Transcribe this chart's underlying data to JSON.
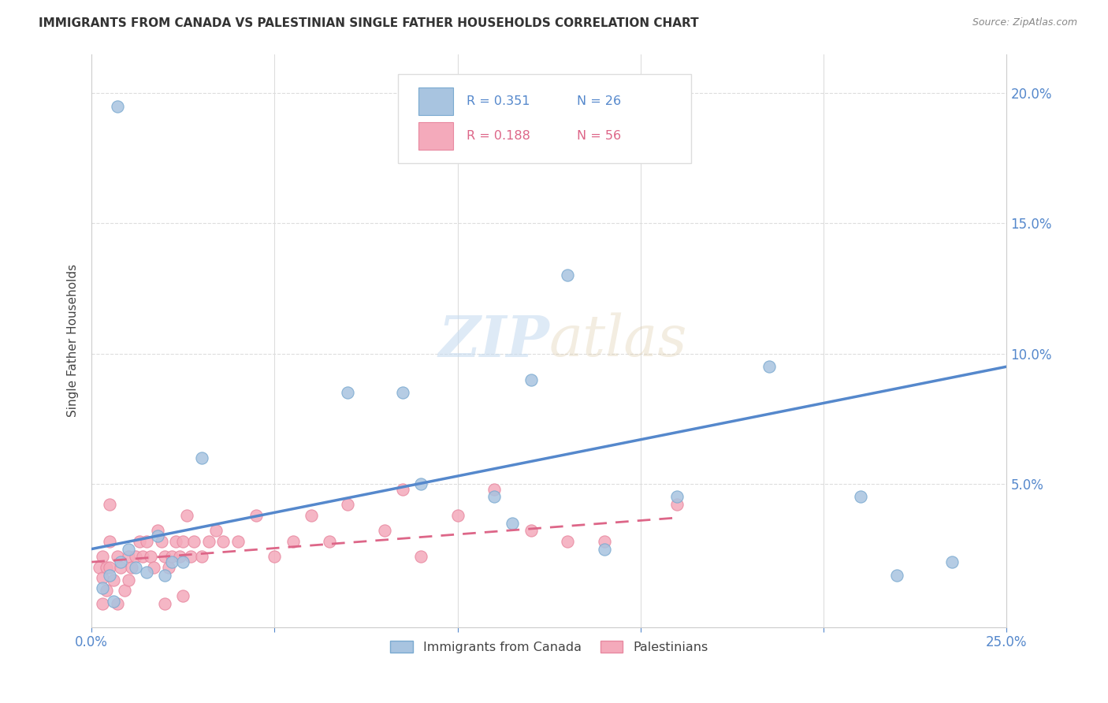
{
  "title": "IMMIGRANTS FROM CANADA VS PALESTINIAN SINGLE FATHER HOUSEHOLDS CORRELATION CHART",
  "source": "Source: ZipAtlas.com",
  "ylabel_label": "Single Father Households",
  "xlim": [
    0.0,
    0.25
  ],
  "ylim": [
    -0.005,
    0.215
  ],
  "blue_color": "#A8C4E0",
  "blue_edge_color": "#7AAAD0",
  "pink_color": "#F4AABB",
  "pink_edge_color": "#E888A0",
  "blue_line_color": "#5588CC",
  "pink_line_color": "#DD6688",
  "watermark_color": "#C8DCF0",
  "blue_scatter_x": [
    0.022,
    0.007,
    0.005,
    0.008,
    0.01,
    0.012,
    0.015,
    0.018,
    0.02,
    0.025,
    0.03,
    0.07,
    0.085,
    0.09,
    0.11,
    0.115,
    0.12,
    0.13,
    0.14,
    0.16,
    0.185,
    0.21,
    0.22,
    0.235,
    0.003,
    0.006
  ],
  "blue_scatter_y": [
    0.02,
    0.195,
    0.015,
    0.02,
    0.025,
    0.018,
    0.016,
    0.03,
    0.015,
    0.02,
    0.06,
    0.085,
    0.085,
    0.05,
    0.045,
    0.035,
    0.09,
    0.13,
    0.025,
    0.045,
    0.095,
    0.045,
    0.015,
    0.02,
    0.01,
    0.005
  ],
  "pink_scatter_x": [
    0.002,
    0.003,
    0.003,
    0.004,
    0.004,
    0.005,
    0.005,
    0.006,
    0.007,
    0.008,
    0.009,
    0.01,
    0.01,
    0.011,
    0.012,
    0.013,
    0.014,
    0.015,
    0.016,
    0.017,
    0.018,
    0.019,
    0.02,
    0.021,
    0.022,
    0.023,
    0.024,
    0.025,
    0.026,
    0.027,
    0.028,
    0.03,
    0.032,
    0.034,
    0.036,
    0.04,
    0.045,
    0.05,
    0.055,
    0.06,
    0.065,
    0.07,
    0.08,
    0.085,
    0.09,
    0.1,
    0.11,
    0.12,
    0.14,
    0.16,
    0.003,
    0.005,
    0.007,
    0.02,
    0.025,
    0.13
  ],
  "pink_scatter_y": [
    0.018,
    0.014,
    0.022,
    0.018,
    0.009,
    0.028,
    0.018,
    0.013,
    0.022,
    0.018,
    0.009,
    0.022,
    0.013,
    0.018,
    0.022,
    0.028,
    0.022,
    0.028,
    0.022,
    0.018,
    0.032,
    0.028,
    0.022,
    0.018,
    0.022,
    0.028,
    0.022,
    0.028,
    0.038,
    0.022,
    0.028,
    0.022,
    0.028,
    0.032,
    0.028,
    0.028,
    0.038,
    0.022,
    0.028,
    0.038,
    0.028,
    0.042,
    0.032,
    0.048,
    0.022,
    0.038,
    0.048,
    0.032,
    0.028,
    0.042,
    0.004,
    0.042,
    0.004,
    0.004,
    0.007,
    0.028
  ],
  "blue_trend_x": [
    0.0,
    0.25
  ],
  "blue_trend_y": [
    0.025,
    0.095
  ],
  "pink_trend_x": [
    0.0,
    0.16
  ],
  "pink_trend_y": [
    0.02,
    0.037
  ],
  "grid_color": "#DDDDDD",
  "background_color": "#FFFFFF",
  "legend_r1": "R = 0.351",
  "legend_n1": "N = 26",
  "legend_r2": "R = 0.188",
  "legend_n2": "N = 56",
  "legend_color_blue": "#5588CC",
  "legend_color_pink": "#DD6688",
  "ytick_vals": [
    0.0,
    0.05,
    0.1,
    0.15,
    0.2
  ],
  "ytick_labels": [
    "",
    "5.0%",
    "10.0%",
    "15.0%",
    "20.0%"
  ]
}
